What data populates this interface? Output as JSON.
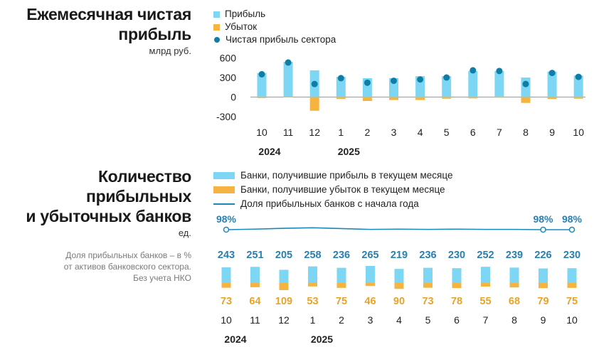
{
  "colors": {
    "profit": "#7dd6f3",
    "loss": "#f5b342",
    "net": "#0f7ea6",
    "share_line": "#1d88b8",
    "profit_label": "#2a7fae",
    "loss_label": "#e8a42a"
  },
  "top": {
    "title_lines": [
      "Ежемесячная чистая",
      "прибыль"
    ],
    "unit": "млрд руб.",
    "legend": {
      "profit": "Прибыль",
      "loss": "Убыток",
      "net": "Чистая прибыль сектора"
    }
  },
  "bottom": {
    "title_lines": [
      "Количество",
      "прибыльных",
      "и убыточных банков"
    ],
    "unit": "ед.",
    "note_lines": [
      "Доля прибыльных банков – в %",
      "от активов банковского сектора.",
      "Без учета НКО"
    ],
    "legend": {
      "profit_banks": "Банки, получившие прибыль в текущем месяце",
      "loss_banks": "Банки, получившие убыток в текущем месяце",
      "share": "Доля прибыльных банков с начала года"
    }
  },
  "chart_data": [
    {
      "type": "bar",
      "categories": [
        "10",
        "11",
        "12",
        "1",
        "2",
        "3",
        "4",
        "5",
        "6",
        "7",
        "8",
        "9",
        "10"
      ],
      "year_labels": [
        {
          "text": "2024",
          "at_index": 0
        },
        {
          "text": "2025",
          "at_index": 3
        }
      ],
      "series": [
        {
          "name": "Прибыль",
          "values": [
            370,
            540,
            410,
            310,
            290,
            290,
            320,
            320,
            400,
            400,
            300,
            390,
            330
          ]
        },
        {
          "name": "Убыток",
          "values": [
            -15,
            -5,
            -210,
            -30,
            -60,
            -45,
            -45,
            -25,
            -20,
            -10,
            -90,
            -30,
            -25
          ]
        },
        {
          "name": "Чистая прибыль сектора",
          "type": "scatter",
          "values": [
            350,
            530,
            200,
            290,
            220,
            250,
            270,
            300,
            410,
            400,
            200,
            370,
            310
          ]
        }
      ],
      "yticks": [
        600,
        300,
        0,
        -300
      ],
      "ytick_labels": [
        "600",
        "300",
        "0",
        "-300"
      ],
      "ylim": [
        -300,
        600
      ],
      "title": "Ежемесячная чистая прибыль",
      "ylabel": "млрд руб."
    },
    {
      "type": "bar",
      "categories": [
        "10",
        "11",
        "12",
        "1",
        "2",
        "3",
        "4",
        "5",
        "6",
        "7",
        "8",
        "9",
        "10"
      ],
      "year_labels": [
        {
          "text": "2024",
          "at_index": 0
        },
        {
          "text": "2025",
          "at_index": 3
        }
      ],
      "series": [
        {
          "name": "Банки, получившие прибыль в текущем месяце",
          "values": [
            243,
            251,
            205,
            258,
            236,
            265,
            219,
            236,
            230,
            252,
            239,
            226,
            230
          ]
        },
        {
          "name": "Банки, получившие убыток в текущем месяце",
          "values": [
            73,
            64,
            109,
            53,
            75,
            46,
            90,
            73,
            78,
            55,
            68,
            79,
            75
          ]
        },
        {
          "name": "Доля прибыльных банков с начала года",
          "type": "line",
          "values": [
            98,
            97.8,
            97.5,
            97.3,
            97.6,
            97.9,
            97.8,
            97.9,
            97.8,
            97.9,
            97.9,
            98,
            98
          ],
          "labels": [
            {
              "index": 0,
              "text": "98%"
            },
            {
              "index": 11,
              "text": "98%"
            },
            {
              "index": 12,
              "text": "98%"
            }
          ]
        }
      ],
      "title": "Количество прибыльных и убыточных банков",
      "ylabel": "ед."
    }
  ]
}
